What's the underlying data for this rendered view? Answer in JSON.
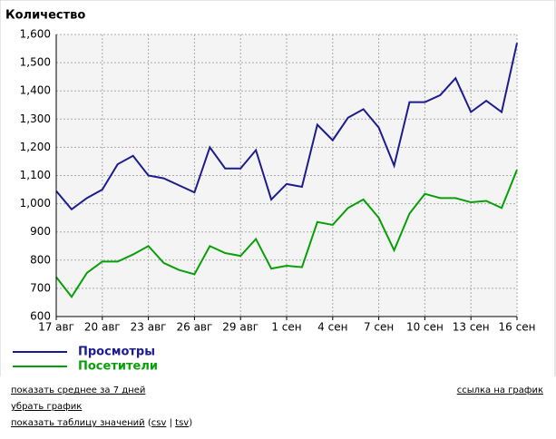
{
  "chart_data": {
    "type": "line",
    "title": "Количество",
    "categories": [
      "17 авг",
      null,
      null,
      "20 авг",
      null,
      null,
      "23 авг",
      null,
      null,
      "26 авг",
      null,
      null,
      "29 авг",
      null,
      null,
      "1 сен",
      null,
      null,
      "4 сен",
      null,
      null,
      "7 сен",
      null,
      null,
      "10 сен",
      null,
      null,
      "13 сен",
      null,
      null,
      "16 сен"
    ],
    "series": [
      {
        "name": "Просмотры",
        "color": "#1c1c8e",
        "values": [
          1045,
          980,
          1020,
          1050,
          1140,
          1170,
          1100,
          1090,
          1065,
          1040,
          1200,
          1125,
          1125,
          1190,
          1015,
          1070,
          1060,
          1280,
          1225,
          1305,
          1335,
          1270,
          1135,
          1360,
          1360,
          1385,
          1445,
          1325,
          1365,
          1325,
          1570
        ]
      },
      {
        "name": "Посетители",
        "color": "#08a008",
        "values": [
          740,
          670,
          755,
          795,
          795,
          820,
          850,
          790,
          765,
          750,
          850,
          825,
          815,
          875,
          770,
          780,
          775,
          935,
          925,
          985,
          1015,
          950,
          835,
          965,
          1035,
          1020,
          1020,
          1005,
          1010,
          985,
          1120
        ]
      }
    ],
    "ylim": [
      600,
      1600
    ],
    "yticks": [
      600,
      700,
      800,
      900,
      {
        "value": 1000,
        "label": "1,000"
      },
      {
        "value": 1100,
        "label": "1,100"
      },
      {
        "value": 1200,
        "label": "1,200"
      },
      {
        "value": 1300,
        "label": "1,300"
      },
      {
        "value": 1400,
        "label": "1,400"
      },
      {
        "value": 1500,
        "label": "1,500"
      },
      {
        "value": 1600,
        "label": "1,600"
      }
    ],
    "grid": true,
    "legend": "bottom-left"
  },
  "links": {
    "average": "показать среднее за 7 дней",
    "remove": "убрать график",
    "table": "показать таблицу значений",
    "open": "(",
    "csv": "csv",
    "sep": "|",
    "tsv": "tsv",
    "close": ")",
    "permalink": "ссылка на график"
  }
}
